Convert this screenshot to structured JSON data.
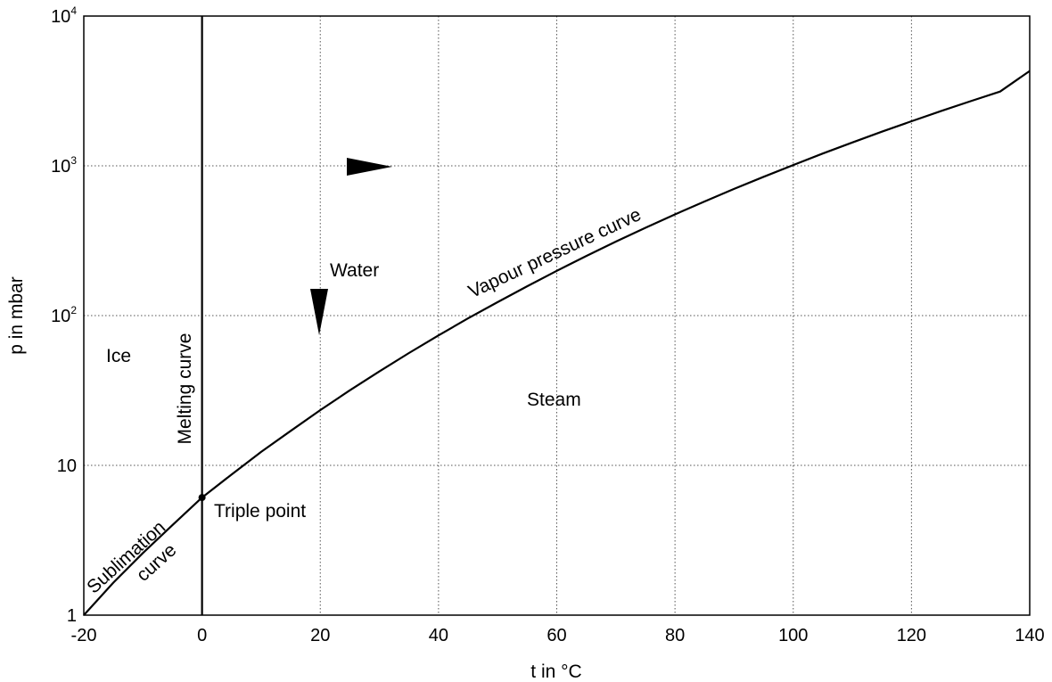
{
  "chart_data": {
    "type": "line",
    "title": "",
    "xlabel": "t in °C",
    "ylabel": "p in mbar",
    "xlim": [
      -20,
      140
    ],
    "ylim": [
      1,
      10000
    ],
    "y_scale": "log",
    "grid": true,
    "x_ticks": [
      -20,
      0,
      20,
      40,
      60,
      80,
      100,
      120,
      140
    ],
    "x_tick_labels": [
      "-20",
      "0",
      "20",
      "40",
      "60",
      "80",
      "100",
      "120",
      "140"
    ],
    "y_ticks": [
      1,
      10,
      100,
      1000,
      10000
    ],
    "y_tick_labels": [
      {
        "base": "1",
        "exp": ""
      },
      {
        "base": "10",
        "exp": ""
      },
      {
        "base": "10",
        "exp": "2"
      },
      {
        "base": "10",
        "exp": "3"
      },
      {
        "base": "10",
        "exp": "4"
      }
    ],
    "series": [
      {
        "color": "#000000",
        "points": [
          [
            -20,
            1.0
          ],
          [
            -15,
            1.65
          ],
          [
            -10,
            2.6
          ],
          [
            -5,
            4.0
          ],
          [
            0,
            6.1
          ],
          [
            5,
            8.7
          ],
          [
            10,
            12.3
          ],
          [
            15,
            17.0
          ],
          [
            20,
            23.4
          ],
          [
            25,
            31.7
          ],
          [
            30,
            42.4
          ],
          [
            35,
            56.2
          ],
          [
            40,
            73.8
          ],
          [
            45,
            95.8
          ],
          [
            50,
            123
          ],
          [
            55,
            157
          ],
          [
            60,
            199
          ],
          [
            65,
            250
          ],
          [
            70,
            312
          ],
          [
            75,
            386
          ],
          [
            80,
            474
          ],
          [
            85,
            578
          ],
          [
            90,
            701
          ],
          [
            95,
            845
          ],
          [
            100,
            1013
          ],
          [
            105,
            1208
          ],
          [
            110,
            1433
          ],
          [
            115,
            1691
          ],
          [
            120,
            1985
          ],
          [
            125,
            2321
          ],
          [
            130,
            2701
          ],
          [
            135,
            3130
          ],
          [
            140,
            4300
          ]
        ]
      }
    ],
    "melting_curve": {
      "t": 0,
      "p_range": [
        1,
        10000
      ]
    },
    "triple_point": {
      "t": 0,
      "p": 6.1
    },
    "annotations": {
      "ice": "Ice",
      "water": "Water",
      "steam": "Steam",
      "melting_curve": "Melting curve",
      "vapour_pressure_curve": "Vapour pressure curve",
      "sublimation_line1": "Sublimation",
      "sublimation_line2": "curve",
      "triple_point": "Triple point"
    }
  }
}
